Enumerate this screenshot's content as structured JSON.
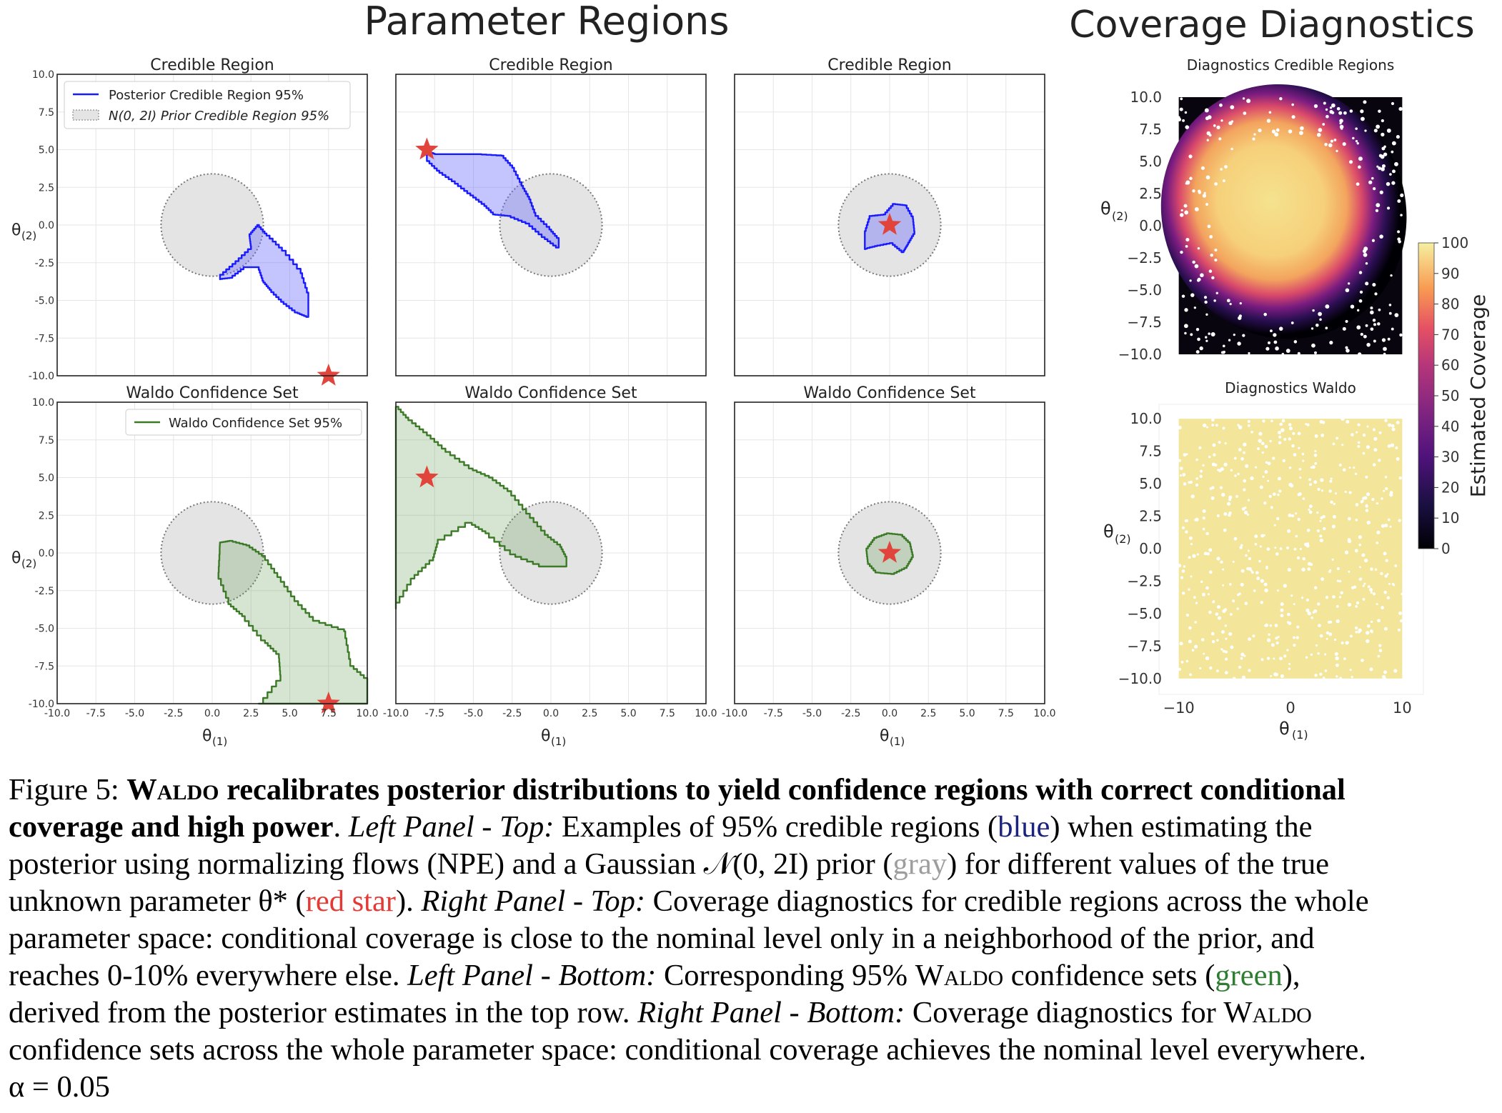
{
  "headers": {
    "left": "Parameter Regions",
    "right": "Coverage Diagnostics"
  },
  "panels": {
    "top_title": "Credible Region",
    "bottom_title": "Waldo Confidence Set",
    "ylabel": "θ",
    "ylabel_sub": "(2)",
    "xlabel": "θ",
    "xlabel_sub": "(1)",
    "legend_top_1": "Posterior Credible Region 95%",
    "legend_top_2": "N(0, 2I) Prior Credible Region 95%",
    "legend_bottom": "Waldo Confidence Set 95%"
  },
  "diagnostics": {
    "top_title": "Diagnostics Credible Regions",
    "bottom_title": "Diagnostics Waldo",
    "colorbar_label": "Estimated Coverage",
    "ylabel": "θ",
    "ylabel_sub": "(2)",
    "xlabel": "θ",
    "xlabel_sub": "(1)"
  },
  "chart_data": [
    {
      "type": "region",
      "panel": "top-1",
      "title": "Credible Region",
      "xlim": [
        -10,
        10
      ],
      "ylim": [
        -10,
        10
      ],
      "xticks": [
        -10.0,
        -7.5,
        -5.0,
        -2.5,
        0.0,
        2.5,
        5.0,
        7.5,
        10.0
      ],
      "yticks": [
        -10.0,
        -7.5,
        -5.0,
        -2.5,
        0.0,
        2.5,
        5.0,
        7.5,
        10.0
      ],
      "prior_circle": {
        "center": [
          0,
          0
        ],
        "radius": 3.3
      },
      "true_param": [
        7.5,
        -10
      ],
      "region_polygon": [
        [
          0.5,
          -3.3
        ],
        [
          1.5,
          -2.4
        ],
        [
          2.5,
          -1.4
        ],
        [
          2.4,
          -0.6
        ],
        [
          2.9,
          0
        ],
        [
          3.5,
          -0.7
        ],
        [
          4.5,
          -1.7
        ],
        [
          5.7,
          -3.2
        ],
        [
          6.2,
          -4.8
        ],
        [
          6.2,
          -6.1
        ],
        [
          5.5,
          -5.8
        ],
        [
          4.6,
          -5.1
        ],
        [
          3.8,
          -4.3
        ],
        [
          3.3,
          -3.7
        ],
        [
          3.0,
          -2.8
        ],
        [
          2.2,
          -2.8
        ],
        [
          1.3,
          -3.5
        ],
        [
          0.5,
          -3.6
        ]
      ]
    },
    {
      "type": "region",
      "panel": "top-2",
      "title": "Credible Region",
      "xlim": [
        -10,
        10
      ],
      "ylim": [
        -10,
        10
      ],
      "prior_circle": {
        "center": [
          0,
          0
        ],
        "radius": 3.3
      },
      "true_param": [
        -8,
        5
      ],
      "region_polygon": [
        [
          -8,
          4.9
        ],
        [
          -7.5,
          4.7
        ],
        [
          -6.5,
          4.7
        ],
        [
          -4.8,
          4.7
        ],
        [
          -3.2,
          4.6
        ],
        [
          -2.5,
          3.8
        ],
        [
          -1.9,
          2.6
        ],
        [
          -1.4,
          1.7
        ],
        [
          -1.0,
          0.6
        ],
        [
          -0.1,
          -0.3
        ],
        [
          0.5,
          -1.0
        ],
        [
          0.5,
          -1.5
        ],
        [
          -0.4,
          -0.8
        ],
        [
          -1.4,
          0.1
        ],
        [
          -2.6,
          0.6
        ],
        [
          -3.6,
          0.7
        ],
        [
          -4.3,
          1.4
        ],
        [
          -5.2,
          2.1
        ],
        [
          -6.2,
          2.9
        ],
        [
          -7.2,
          3.6
        ],
        [
          -8,
          4.4
        ]
      ]
    },
    {
      "type": "region",
      "panel": "top-3",
      "title": "Credible Region",
      "xlim": [
        -10,
        10
      ],
      "ylim": [
        -10,
        10
      ],
      "prior_circle": {
        "center": [
          0,
          0
        ],
        "radius": 3.3
      },
      "true_param": [
        0,
        0
      ],
      "region_polygon": [
        [
          -1.6,
          -1.6
        ],
        [
          -1.6,
          -0.4
        ],
        [
          -1.3,
          0.6
        ],
        [
          -0.4,
          0.7
        ],
        [
          0.2,
          1.4
        ],
        [
          1.0,
          1.3
        ],
        [
          1.5,
          0.4
        ],
        [
          1.6,
          -0.6
        ],
        [
          1.2,
          -1.3
        ],
        [
          0.9,
          -1.8
        ],
        [
          0.2,
          -1.2
        ],
        [
          -0.8,
          -1.4
        ]
      ]
    },
    {
      "type": "region",
      "panel": "bottom-1",
      "title": "Waldo Confidence Set",
      "xlim": [
        -10,
        10
      ],
      "ylim": [
        -10,
        10
      ],
      "prior_circle": {
        "center": [
          0,
          0
        ],
        "radius": 3.3
      },
      "true_param": [
        7.5,
        -10
      ],
      "region_polygon": [
        [
          0.5,
          0.7
        ],
        [
          1.1,
          0.8
        ],
        [
          2.2,
          0.5
        ],
        [
          3.2,
          -0.2
        ],
        [
          4.2,
          -1.6
        ],
        [
          5.3,
          -3.2
        ],
        [
          6.5,
          -4.5
        ],
        [
          8.5,
          -5.2
        ],
        [
          8.9,
          -7.5
        ],
        [
          10,
          -8.5
        ],
        [
          10,
          -10
        ],
        [
          3.0,
          -10
        ],
        [
          4.4,
          -8.1
        ],
        [
          4.3,
          -6.7
        ],
        [
          3.4,
          -5.8
        ],
        [
          2.1,
          -4.2
        ],
        [
          1.2,
          -3.4
        ],
        [
          0.4,
          -1.3
        ]
      ]
    },
    {
      "type": "region",
      "panel": "bottom-2",
      "title": "Waldo Confidence Set",
      "xlim": [
        -10,
        10
      ],
      "ylim": [
        -10,
        10
      ],
      "prior_circle": {
        "center": [
          0,
          0
        ],
        "radius": 3.3
      },
      "true_param": [
        -8,
        5
      ],
      "region_polygon": [
        [
          -10,
          9.7
        ],
        [
          -9.2,
          8.8
        ],
        [
          -8.0,
          7.8
        ],
        [
          -6.8,
          6.7
        ],
        [
          -5.3,
          5.6
        ],
        [
          -4.0,
          5.0
        ],
        [
          -2.8,
          4.1
        ],
        [
          -1.6,
          2.6
        ],
        [
          -0.4,
          1.2
        ],
        [
          0.6,
          0.4
        ],
        [
          1.0,
          -0.4
        ],
        [
          1.0,
          -0.9
        ],
        [
          -0.4,
          -0.9
        ],
        [
          -2.3,
          -0.1
        ],
        [
          -4.0,
          1.3
        ],
        [
          -5.1,
          2.0
        ],
        [
          -7.3,
          0.6
        ],
        [
          -7.6,
          -0.5
        ],
        [
          -8.8,
          -1.7
        ],
        [
          -10,
          -3.7
        ]
      ]
    },
    {
      "type": "region",
      "panel": "bottom-3",
      "title": "Waldo Confidence Set",
      "xlim": [
        -10,
        10
      ],
      "ylim": [
        -10,
        10
      ],
      "prior_circle": {
        "center": [
          0,
          0
        ],
        "radius": 3.3
      },
      "true_param": [
        0,
        0
      ],
      "region_polygon": [
        [
          -0.8,
          -1.3
        ],
        [
          -1.4,
          -0.6
        ],
        [
          -1.5,
          0.3
        ],
        [
          -1.0,
          1.0
        ],
        [
          -0.2,
          1.3
        ],
        [
          0.7,
          1.2
        ],
        [
          1.3,
          0.6
        ],
        [
          1.5,
          -0.3
        ],
        [
          1.1,
          -1.0
        ],
        [
          0.3,
          -1.4
        ]
      ]
    },
    {
      "type": "scatter",
      "panel": "diagnostics-credible",
      "title": "Diagnostics Credible Regions",
      "xlim": [
        -11,
        11
      ],
      "ylim": [
        -11,
        11
      ],
      "yticks": [
        10.0,
        7.5,
        5.0,
        2.5,
        0.0,
        -2.5,
        -5.0,
        -7.5,
        -10.0
      ],
      "coverage_model": "high (~95) near prior center, falling to ~0 beyond radius ~7"
    },
    {
      "type": "scatter",
      "panel": "diagnostics-waldo",
      "title": "Diagnostics Waldo",
      "xlim": [
        -11,
        11
      ],
      "ylim": [
        -11,
        11
      ],
      "xticks": [
        -10,
        0,
        10
      ],
      "yticks": [
        10.0,
        7.5,
        5.0,
        2.5,
        0.0,
        -2.5,
        -5.0,
        -7.5,
        -10.0
      ],
      "coverage_model": "~95 everywhere"
    },
    {
      "type": "colorbar",
      "label": "Estimated Coverage",
      "range": [
        0,
        100
      ],
      "ticks": [
        100,
        90,
        80,
        70,
        60,
        50,
        40,
        30,
        20,
        10,
        0
      ]
    }
  ],
  "caption": {
    "line1_a": "Figure 5: ",
    "line1_b_sc": "Waldo",
    "line1_c": " recalibrates posterior distributions to yield confidence regions with correct conditional",
    "line2_a": "coverage and high power",
    "line2_b": ". ",
    "line2_c": "Left Panel - Top:",
    "line2_d": " Examples of 95% credible regions (",
    "line2_blue": "blue",
    "line2_e": ") when estimating the",
    "line3_a": "posterior using normalizing flows (NPE) and a Gaussian 𝒩(0, 2I) prior (",
    "line3_gray": "gray",
    "line3_b": ") for different values of the true",
    "line4_a": "unknown parameter θ* (",
    "line4_red": "red star",
    "line4_b": "). ",
    "line4_c": "Right Panel - Top:",
    "line4_d": " Coverage diagnostics for credible regions across the whole",
    "line5": "parameter space: conditional coverage is close to the nominal level only in a neighborhood of the prior, and",
    "line6_a": "reaches 0-10% everywhere else. ",
    "line6_b": "Left Panel - Bottom:",
    "line6_c": " Corresponding 95% ",
    "line6_sc": "Waldo",
    "line6_d": " confidence sets (",
    "line6_green": "green",
    "line6_e": "),",
    "line7_a": "derived from the posterior estimates in the top row. ",
    "line7_b": "Right Panel - Bottom:",
    "line7_c": " Coverage diagnostics for ",
    "line7_sc": "Waldo",
    "line8": "confidence sets across the whole parameter space: conditional coverage achieves the nominal level everywhere.",
    "line9": "α = 0.05"
  }
}
